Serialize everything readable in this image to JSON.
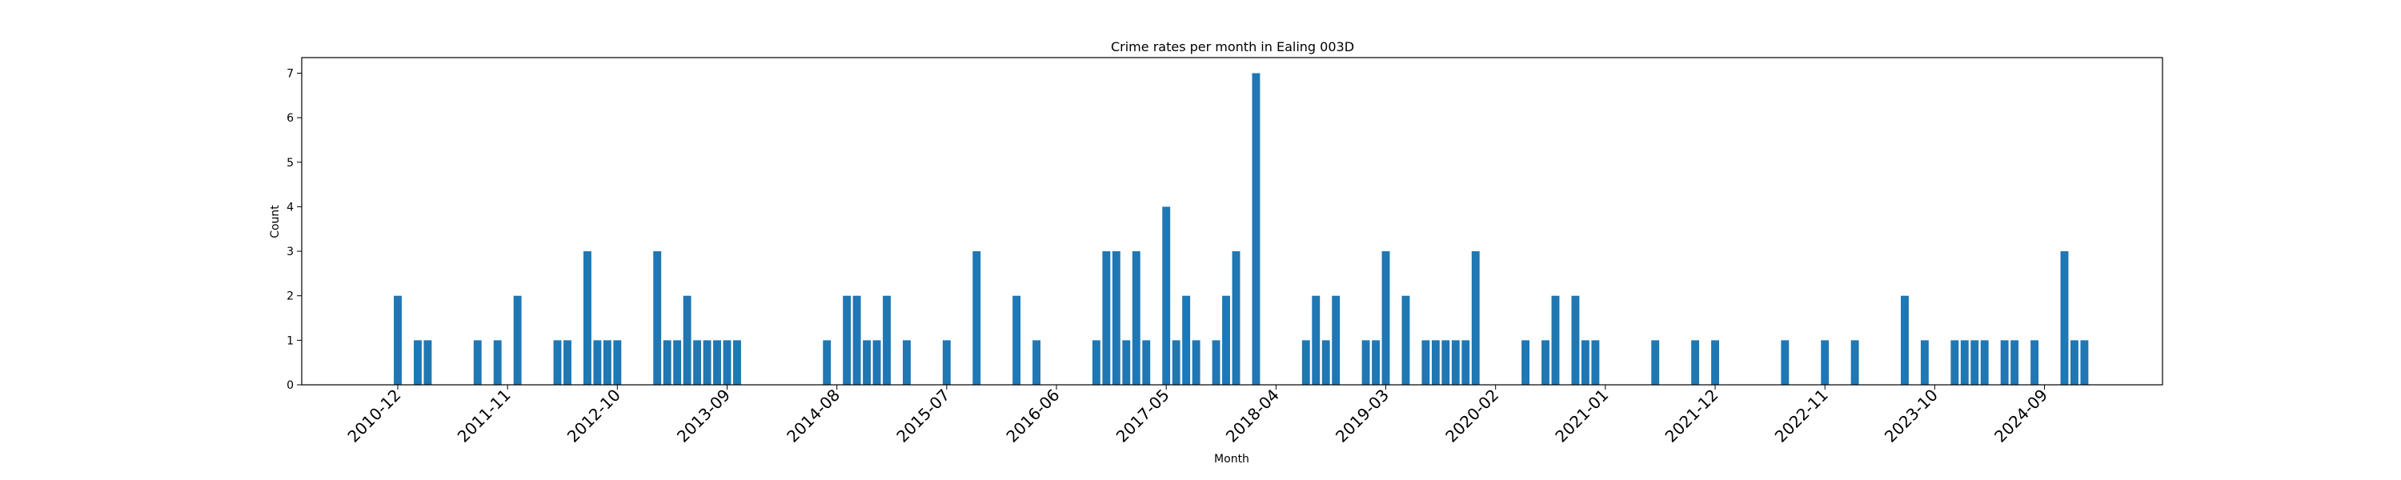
{
  "chart_data": {
    "type": "bar",
    "title": "Crime rates per month in Ealing 003D",
    "xlabel": "Month",
    "ylabel": "Count",
    "ylim": [
      0,
      7.35
    ],
    "yticks": [
      0,
      1,
      2,
      3,
      4,
      5,
      6,
      7
    ],
    "xticks": [
      "2010-12",
      "2011-11",
      "2012-10",
      "2013-09",
      "2014-08",
      "2015-07",
      "2016-06",
      "2017-05",
      "2018-04",
      "2019-03",
      "2020-02",
      "2021-01",
      "2021-12",
      "2022-11",
      "2023-10",
      "2024-09"
    ],
    "bar_color": "#1f77b4",
    "grid": false,
    "categories": [
      "2010-12",
      "2011-02",
      "2011-03",
      "2011-08",
      "2011-10",
      "2011-12",
      "2012-04",
      "2012-05",
      "2012-07",
      "2012-08",
      "2012-09",
      "2012-10",
      "2013-02",
      "2013-03",
      "2013-04",
      "2013-05",
      "2013-06",
      "2013-07",
      "2013-08",
      "2013-09",
      "2013-10",
      "2014-07",
      "2014-09",
      "2014-10",
      "2014-11",
      "2014-12",
      "2015-01",
      "2015-03",
      "2015-07",
      "2015-10",
      "2016-02",
      "2016-04",
      "2016-10",
      "2016-11",
      "2016-12",
      "2017-01",
      "2017-02",
      "2017-03",
      "2017-05",
      "2017-06",
      "2017-07",
      "2017-08",
      "2017-10",
      "2017-11",
      "2017-12",
      "2018-02",
      "2018-07",
      "2018-08",
      "2018-09",
      "2018-10",
      "2019-01",
      "2019-02",
      "2019-03",
      "2019-05",
      "2019-07",
      "2019-08",
      "2019-09",
      "2019-10",
      "2019-11",
      "2019-12",
      "2020-05",
      "2020-07",
      "2020-08",
      "2020-10",
      "2020-11",
      "2020-12",
      "2021-06",
      "2021-10",
      "2021-12",
      "2022-07",
      "2022-11",
      "2023-02",
      "2023-07",
      "2023-09",
      "2023-12",
      "2024-01",
      "2024-02",
      "2024-03",
      "2024-05",
      "2024-06",
      "2024-08",
      "2024-11",
      "2024-12",
      "2025-01"
    ],
    "values": [
      2,
      1,
      1,
      1,
      1,
      2,
      1,
      1,
      3,
      1,
      1,
      1,
      3,
      1,
      1,
      2,
      1,
      1,
      1,
      1,
      1,
      1,
      2,
      2,
      1,
      1,
      2,
      1,
      1,
      3,
      2,
      1,
      1,
      3,
      3,
      1,
      3,
      1,
      4,
      1,
      2,
      1,
      1,
      2,
      3,
      7,
      1,
      2,
      1,
      2,
      1,
      1,
      3,
      2,
      1,
      1,
      1,
      1,
      1,
      3,
      1,
      1,
      2,
      2,
      1,
      1,
      1,
      1,
      1,
      1,
      1,
      1,
      2,
      1,
      1,
      1,
      1,
      1,
      1,
      1,
      1,
      3,
      1,
      1
    ]
  }
}
